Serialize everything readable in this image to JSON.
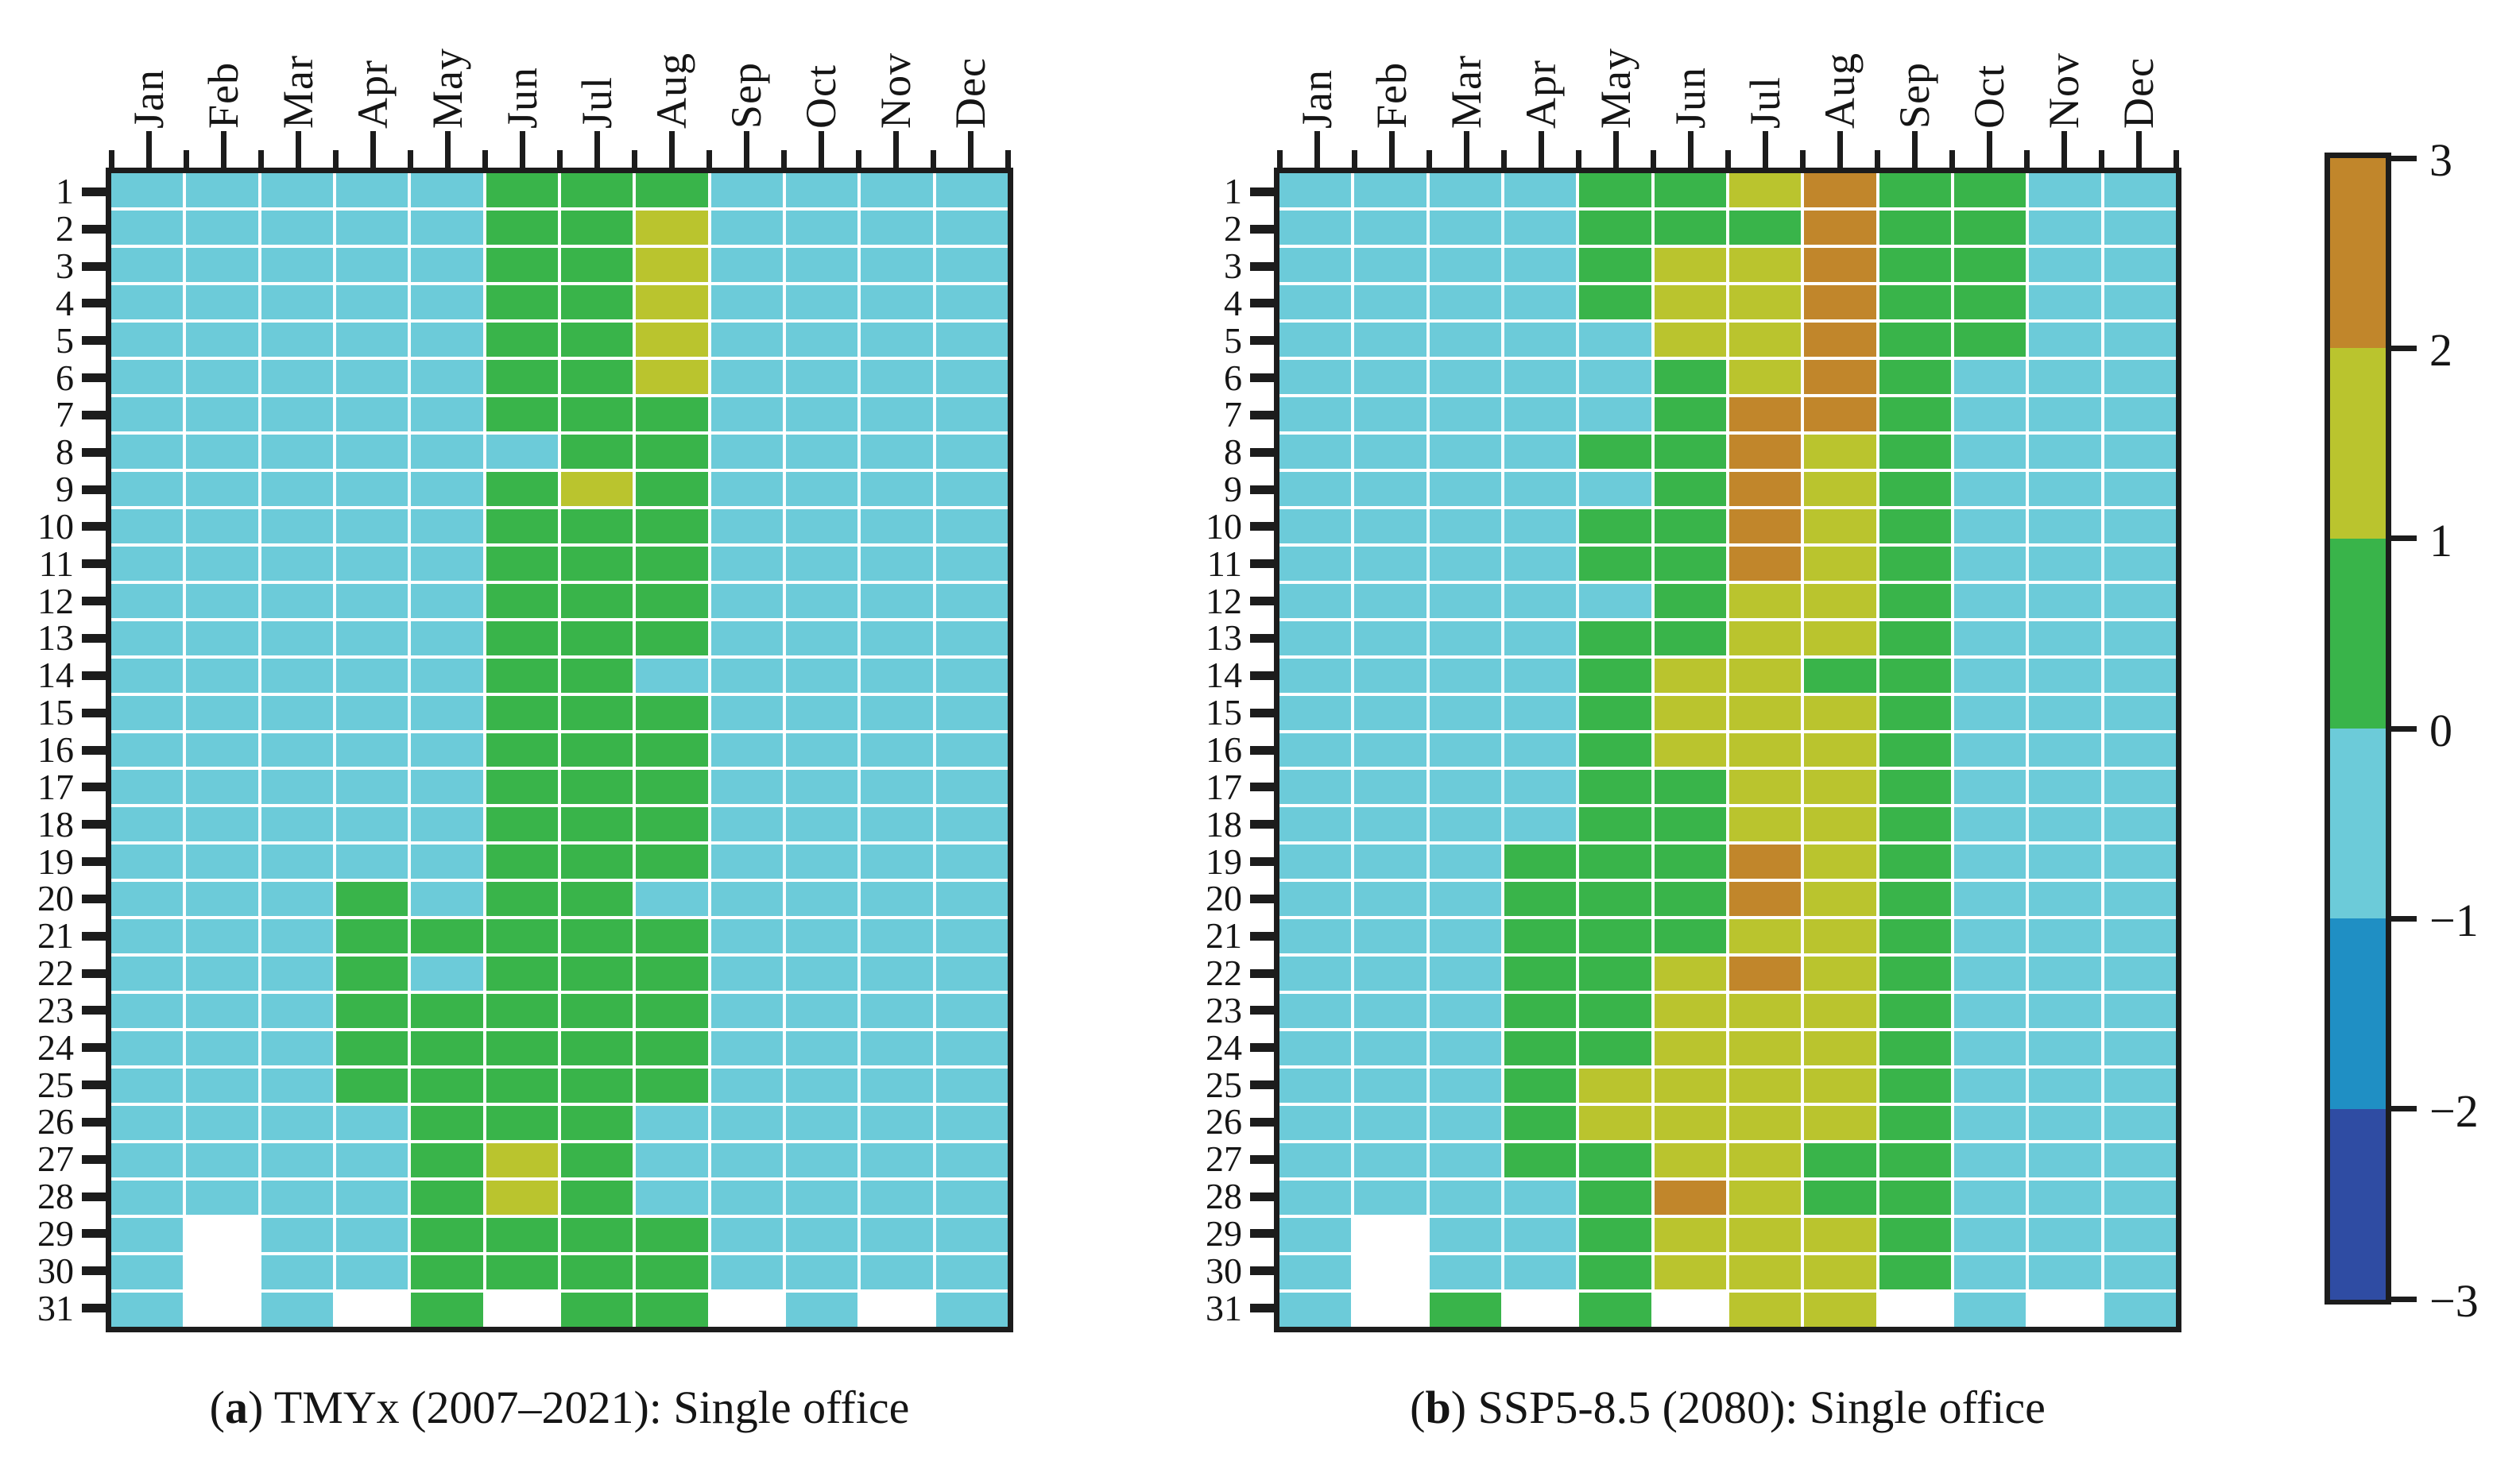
{
  "chart_data": {
    "type": "heatmap",
    "description_visible": "Two calendar heatmaps (day of month vs month) with a shared discrete colorbar",
    "x_categories": [
      "Jan",
      "Feb",
      "Mar",
      "Apr",
      "May",
      "Jun",
      "Jul",
      "Aug",
      "Sep",
      "Oct",
      "Nov",
      "Dec"
    ],
    "y_categories": [
      "1",
      "2",
      "3",
      "4",
      "5",
      "6",
      "7",
      "8",
      "9",
      "10",
      "11",
      "12",
      "13",
      "14",
      "15",
      "16",
      "17",
      "18",
      "19",
      "20",
      "21",
      "22",
      "23",
      "24",
      "25",
      "26",
      "27",
      "28",
      "29",
      "30",
      "31"
    ],
    "palette": {
      "3": "#C1862B",
      "2": "#BAC42E",
      "1": "#39B44A",
      "0": "#6CCBD9",
      "-1": "#1F8FC4",
      "-2": "#2F4CA3",
      "missing": "#FFFFFF"
    },
    "colorbar": {
      "min": -3,
      "max": 3,
      "position": "right",
      "tick_labels": [
        "3",
        "2",
        "1",
        "0",
        "−1",
        "−2",
        "−3"
      ],
      "band_colors_top_to_bottom": [
        "#C1862B",
        "#BAC42E",
        "#39B44A",
        "#6CCBD9",
        "#1F8FC4",
        "#2F4CA3"
      ],
      "bin_edges": [
        -3,
        -2,
        -1,
        0,
        1,
        2,
        3
      ]
    },
    "cell_value_encoding": "integer = upper edge of colorbar bin shown by the cell color; null = day does not exist (white)",
    "panels": [
      {
        "caption_open": "(",
        "caption_label": "a",
        "caption_rest": ") TMYx (2007–2021): Single office",
        "rows": [
          [
            0,
            0,
            0,
            0,
            0,
            1,
            1,
            1,
            0,
            0,
            0,
            0
          ],
          [
            0,
            0,
            0,
            0,
            0,
            1,
            1,
            2,
            0,
            0,
            0,
            0
          ],
          [
            0,
            0,
            0,
            0,
            0,
            1,
            1,
            2,
            0,
            0,
            0,
            0
          ],
          [
            0,
            0,
            0,
            0,
            0,
            1,
            1,
            2,
            0,
            0,
            0,
            0
          ],
          [
            0,
            0,
            0,
            0,
            0,
            1,
            1,
            2,
            0,
            0,
            0,
            0
          ],
          [
            0,
            0,
            0,
            0,
            0,
            1,
            1,
            2,
            0,
            0,
            0,
            0
          ],
          [
            0,
            0,
            0,
            0,
            0,
            1,
            1,
            1,
            0,
            0,
            0,
            0
          ],
          [
            0,
            0,
            0,
            0,
            0,
            0,
            1,
            1,
            0,
            0,
            0,
            0
          ],
          [
            0,
            0,
            0,
            0,
            0,
            1,
            2,
            1,
            0,
            0,
            0,
            0
          ],
          [
            0,
            0,
            0,
            0,
            0,
            1,
            1,
            1,
            0,
            0,
            0,
            0
          ],
          [
            0,
            0,
            0,
            0,
            0,
            1,
            1,
            1,
            0,
            0,
            0,
            0
          ],
          [
            0,
            0,
            0,
            0,
            0,
            1,
            1,
            1,
            0,
            0,
            0,
            0
          ],
          [
            0,
            0,
            0,
            0,
            0,
            1,
            1,
            1,
            0,
            0,
            0,
            0
          ],
          [
            0,
            0,
            0,
            0,
            0,
            1,
            1,
            0,
            0,
            0,
            0,
            0
          ],
          [
            0,
            0,
            0,
            0,
            0,
            1,
            1,
            1,
            0,
            0,
            0,
            0
          ],
          [
            0,
            0,
            0,
            0,
            0,
            1,
            1,
            1,
            0,
            0,
            0,
            0
          ],
          [
            0,
            0,
            0,
            0,
            0,
            1,
            1,
            1,
            0,
            0,
            0,
            0
          ],
          [
            0,
            0,
            0,
            0,
            0,
            1,
            1,
            1,
            0,
            0,
            0,
            0
          ],
          [
            0,
            0,
            0,
            0,
            0,
            1,
            1,
            1,
            0,
            0,
            0,
            0
          ],
          [
            0,
            0,
            0,
            1,
            0,
            1,
            1,
            0,
            0,
            0,
            0,
            0
          ],
          [
            0,
            0,
            0,
            1,
            1,
            1,
            1,
            1,
            0,
            0,
            0,
            0
          ],
          [
            0,
            0,
            0,
            1,
            0,
            1,
            1,
            1,
            0,
            0,
            0,
            0
          ],
          [
            0,
            0,
            0,
            1,
            1,
            1,
            1,
            1,
            0,
            0,
            0,
            0
          ],
          [
            0,
            0,
            0,
            1,
            1,
            1,
            1,
            1,
            0,
            0,
            0,
            0
          ],
          [
            0,
            0,
            0,
            1,
            1,
            1,
            1,
            1,
            0,
            0,
            0,
            0
          ],
          [
            0,
            0,
            0,
            0,
            1,
            1,
            1,
            0,
            0,
            0,
            0,
            0
          ],
          [
            0,
            0,
            0,
            0,
            1,
            2,
            1,
            0,
            0,
            0,
            0,
            0
          ],
          [
            0,
            0,
            0,
            0,
            1,
            2,
            1,
            0,
            0,
            0,
            0,
            0
          ],
          [
            0,
            null,
            0,
            0,
            1,
            1,
            1,
            1,
            0,
            0,
            0,
            0
          ],
          [
            0,
            null,
            0,
            0,
            1,
            1,
            1,
            1,
            0,
            0,
            0,
            0
          ],
          [
            0,
            null,
            0,
            null,
            1,
            null,
            1,
            1,
            null,
            0,
            null,
            0
          ]
        ]
      },
      {
        "caption_open": "(",
        "caption_label": "b",
        "caption_rest": ") SSP5-8.5 (2080): Single office",
        "rows": [
          [
            0,
            0,
            0,
            0,
            1,
            1,
            2,
            3,
            1,
            1,
            0,
            0
          ],
          [
            0,
            0,
            0,
            0,
            1,
            1,
            1,
            3,
            1,
            1,
            0,
            0
          ],
          [
            0,
            0,
            0,
            0,
            1,
            2,
            2,
            3,
            1,
            1,
            0,
            0
          ],
          [
            0,
            0,
            0,
            0,
            1,
            2,
            2,
            3,
            1,
            1,
            0,
            0
          ],
          [
            0,
            0,
            0,
            0,
            0,
            2,
            2,
            3,
            1,
            1,
            0,
            0
          ],
          [
            0,
            0,
            0,
            0,
            0,
            1,
            2,
            3,
            1,
            0,
            0,
            0
          ],
          [
            0,
            0,
            0,
            0,
            0,
            1,
            3,
            3,
            1,
            0,
            0,
            0
          ],
          [
            0,
            0,
            0,
            0,
            1,
            1,
            3,
            2,
            1,
            0,
            0,
            0
          ],
          [
            0,
            0,
            0,
            0,
            0,
            1,
            3,
            2,
            1,
            0,
            0,
            0
          ],
          [
            0,
            0,
            0,
            0,
            1,
            1,
            3,
            2,
            1,
            0,
            0,
            0
          ],
          [
            0,
            0,
            0,
            0,
            1,
            1,
            3,
            2,
            1,
            0,
            0,
            0
          ],
          [
            0,
            0,
            0,
            0,
            0,
            1,
            2,
            2,
            1,
            0,
            0,
            0
          ],
          [
            0,
            0,
            0,
            0,
            1,
            1,
            2,
            2,
            1,
            0,
            0,
            0
          ],
          [
            0,
            0,
            0,
            0,
            1,
            2,
            2,
            1,
            1,
            0,
            0,
            0
          ],
          [
            0,
            0,
            0,
            0,
            1,
            2,
            2,
            2,
            1,
            0,
            0,
            0
          ],
          [
            0,
            0,
            0,
            0,
            1,
            2,
            2,
            2,
            1,
            0,
            0,
            0
          ],
          [
            0,
            0,
            0,
            0,
            1,
            1,
            2,
            2,
            1,
            0,
            0,
            0
          ],
          [
            0,
            0,
            0,
            0,
            1,
            1,
            2,
            2,
            1,
            0,
            0,
            0
          ],
          [
            0,
            0,
            0,
            1,
            1,
            1,
            3,
            2,
            1,
            0,
            0,
            0
          ],
          [
            0,
            0,
            0,
            1,
            1,
            1,
            3,
            2,
            1,
            0,
            0,
            0
          ],
          [
            0,
            0,
            0,
            1,
            1,
            1,
            2,
            2,
            1,
            0,
            0,
            0
          ],
          [
            0,
            0,
            0,
            1,
            1,
            2,
            3,
            2,
            1,
            0,
            0,
            0
          ],
          [
            0,
            0,
            0,
            1,
            1,
            2,
            2,
            2,
            1,
            0,
            0,
            0
          ],
          [
            0,
            0,
            0,
            1,
            1,
            2,
            2,
            2,
            1,
            0,
            0,
            0
          ],
          [
            0,
            0,
            0,
            1,
            2,
            2,
            2,
            2,
            1,
            0,
            0,
            0
          ],
          [
            0,
            0,
            0,
            1,
            2,
            2,
            2,
            2,
            1,
            0,
            0,
            0
          ],
          [
            0,
            0,
            0,
            1,
            1,
            2,
            2,
            1,
            1,
            0,
            0,
            0
          ],
          [
            0,
            0,
            0,
            0,
            1,
            3,
            2,
            1,
            1,
            0,
            0,
            0
          ],
          [
            0,
            null,
            0,
            0,
            1,
            2,
            2,
            2,
            1,
            0,
            0,
            0
          ],
          [
            0,
            null,
            0,
            0,
            1,
            2,
            2,
            2,
            1,
            0,
            0,
            0
          ],
          [
            0,
            null,
            1,
            null,
            1,
            null,
            2,
            2,
            null,
            0,
            null,
            0
          ]
        ]
      }
    ]
  }
}
